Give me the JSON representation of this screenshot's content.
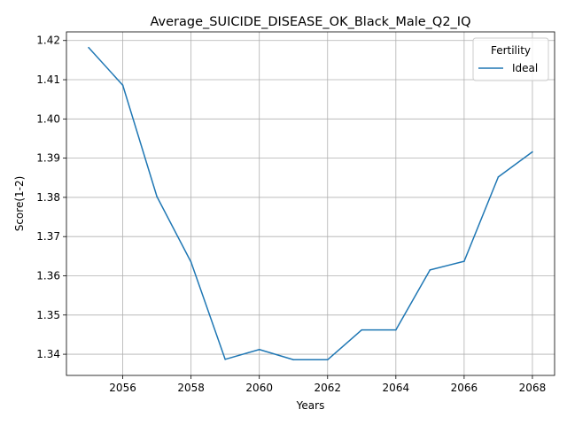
{
  "chart_data": {
    "type": "line",
    "title": "Average_SUICIDE_DISEASE_OK_Black_Male_Q2_IQ",
    "xlabel": "Years",
    "ylabel": "Score(1-2)",
    "x": [
      2055,
      2056,
      2057,
      2058,
      2059,
      2060,
      2061,
      2062,
      2063,
      2064,
      2065,
      2066,
      2067,
      2068
    ],
    "series": [
      {
        "name": "Ideal",
        "color": "#1f77b4",
        "values": [
          1.4182,
          1.4086,
          1.3802,
          1.3635,
          1.3387,
          1.3412,
          1.3386,
          1.3386,
          1.3462,
          1.3462,
          1.3615,
          1.3637,
          1.3852,
          1.3916
        ]
      }
    ],
    "xlim": [
      2054.35,
      2068.65
    ],
    "ylim": [
      1.3346,
      1.4222
    ],
    "xticks": [
      "2056",
      "2058",
      "2060",
      "2062",
      "2064",
      "2066",
      "2068"
    ],
    "yticks": [
      "1.34",
      "1.35",
      "1.36",
      "1.37",
      "1.38",
      "1.39",
      "1.40",
      "1.41",
      "1.42"
    ],
    "grid": true,
    "legend": {
      "title": "Fertility",
      "placement": "top-right"
    }
  }
}
